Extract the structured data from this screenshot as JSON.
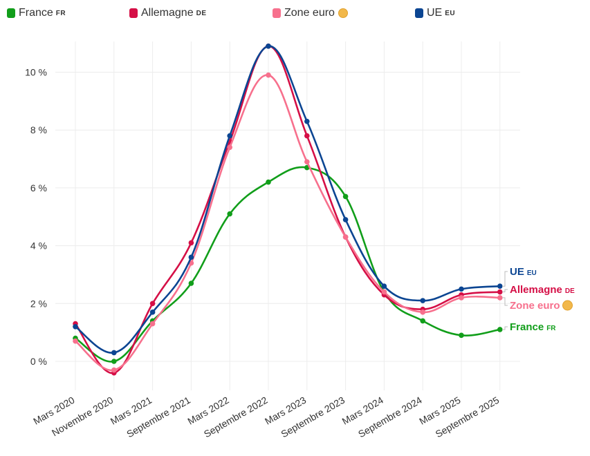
{
  "legend": [
    {
      "name": "France",
      "code": "FR",
      "color": "#119e1a",
      "icon": ""
    },
    {
      "name": "Allemagne",
      "code": "DE",
      "color": "#d50f46",
      "icon": ""
    },
    {
      "name": "Zone euro",
      "code": "",
      "color": "#f7708d",
      "icon": "euro-coin-icon"
    },
    {
      "name": "UE",
      "code": "EU",
      "color": "#0b4592",
      "icon": ""
    }
  ],
  "chart_data": {
    "type": "line",
    "categories": [
      "Mars 2020",
      "Novembre 2020",
      "Mars 2021",
      "Septembre 2021",
      "Mars 2022",
      "Septembre 2022",
      "Mars 2023",
      "Septembre 2023",
      "Mars 2024",
      "Septembre 2024",
      "Mars 2025",
      "Septembre 2025"
    ],
    "ylim": [
      -1,
      11
    ],
    "yticks": [
      0,
      2,
      4,
      6,
      8,
      10
    ],
    "ytick_labels": [
      "0 %",
      "2 %",
      "4 %",
      "6 %",
      "8 %",
      "10 %"
    ],
    "grid": true,
    "legend_position": "top",
    "series": [
      {
        "name": "France",
        "code": "FR",
        "color": "#119e1a",
        "values": [
          0.8,
          0.0,
          1.4,
          2.7,
          5.1,
          6.2,
          6.7,
          5.7,
          2.4,
          1.4,
          0.9,
          1.1
        ]
      },
      {
        "name": "Allemagne",
        "code": "DE",
        "color": "#d50f46",
        "values": [
          1.3,
          -0.4,
          2.0,
          4.1,
          7.6,
          10.9,
          7.8,
          4.3,
          2.3,
          1.8,
          2.3,
          2.4
        ]
      },
      {
        "name": "Zone euro",
        "code": "",
        "color": "#f7708d",
        "values": [
          0.7,
          -0.3,
          1.3,
          3.4,
          7.4,
          9.9,
          6.9,
          4.3,
          2.4,
          1.7,
          2.2,
          2.2
        ]
      },
      {
        "name": "UE",
        "code": "EU",
        "color": "#0b4592",
        "values": [
          1.2,
          0.3,
          1.7,
          3.6,
          7.8,
          10.9,
          8.3,
          4.9,
          2.6,
          2.1,
          2.5,
          2.6
        ]
      }
    ],
    "end_labels_order": [
      "UE",
      "Allemagne",
      "Zone euro",
      "France"
    ]
  }
}
